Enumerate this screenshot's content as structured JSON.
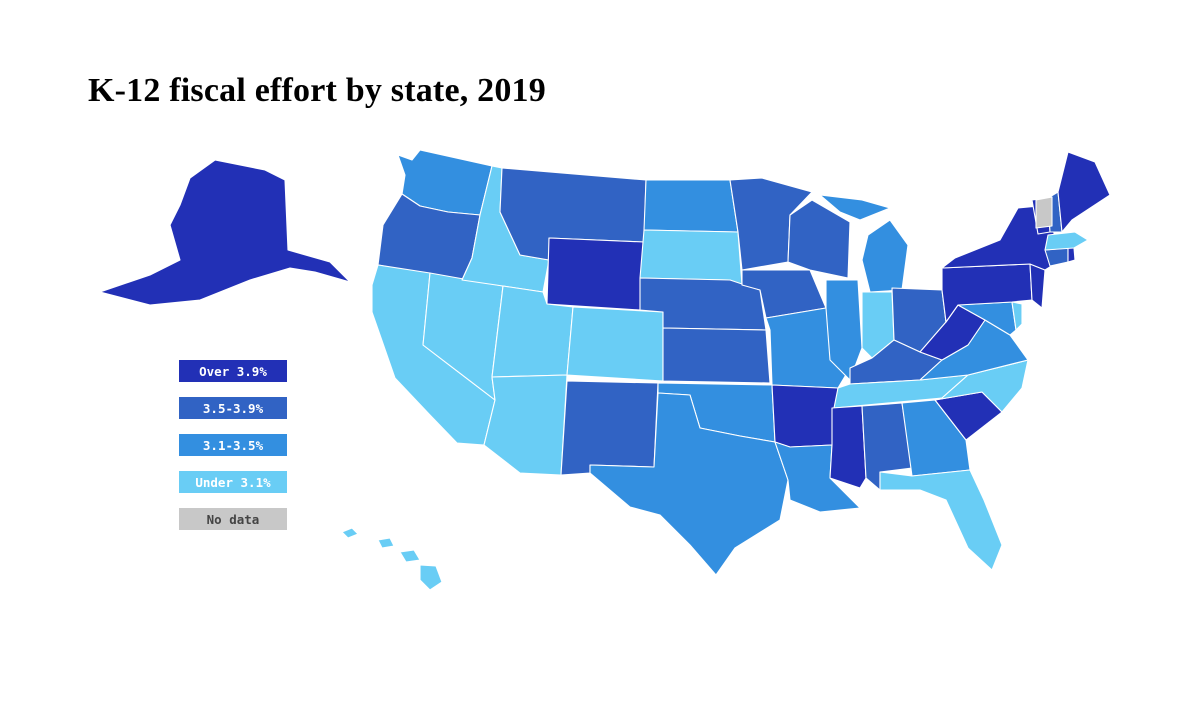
{
  "title": "K-12 fiscal effort by state, 2019",
  "colors": {
    "over_3_9": "#2230b6",
    "r35_39": "#3163c4",
    "r31_35": "#338fe0",
    "under_3_1": "#69cdf5",
    "no_data": "#c8c8c8"
  },
  "legend": [
    {
      "label": "Over 3.9%",
      "color": "#2230b6",
      "text_color": "#ffffff"
    },
    {
      "label": "3.5-3.9%",
      "color": "#3163c4",
      "text_color": "#ffffff"
    },
    {
      "label": "3.1-3.5%",
      "color": "#338fe0",
      "text_color": "#ffffff"
    },
    {
      "label": "Under 3.1%",
      "color": "#69cdf5",
      "text_color": "#ffffff"
    },
    {
      "label": "No data",
      "color": "#c8c8c8",
      "text_color": "#444444"
    }
  ],
  "states": [
    {
      "name": "WA",
      "category": "3.1-3.5%"
    },
    {
      "name": "OR",
      "category": "3.5-3.9%"
    },
    {
      "name": "CA",
      "category": "Under 3.1%"
    },
    {
      "name": "NV",
      "category": "Under 3.1%"
    },
    {
      "name": "ID",
      "category": "Under 3.1%"
    },
    {
      "name": "MT",
      "category": "3.5-3.9%"
    },
    {
      "name": "WY",
      "category": "Over 3.9%"
    },
    {
      "name": "UT",
      "category": "Under 3.1%"
    },
    {
      "name": "AZ",
      "category": "Under 3.1%"
    },
    {
      "name": "CO",
      "category": "Under 3.1%"
    },
    {
      "name": "NM",
      "category": "3.5-3.9%"
    },
    {
      "name": "ND",
      "category": "3.1-3.5%"
    },
    {
      "name": "SD",
      "category": "Under 3.1%"
    },
    {
      "name": "NE",
      "category": "3.5-3.9%"
    },
    {
      "name": "KS",
      "category": "3.5-3.9%"
    },
    {
      "name": "OK",
      "category": "3.1-3.5%"
    },
    {
      "name": "TX",
      "category": "3.1-3.5%"
    },
    {
      "name": "MN",
      "category": "3.5-3.9%"
    },
    {
      "name": "IA",
      "category": "3.5-3.9%"
    },
    {
      "name": "MO",
      "category": "3.1-3.5%"
    },
    {
      "name": "AR",
      "category": "Over 3.9%"
    },
    {
      "name": "LA",
      "category": "3.1-3.5%"
    },
    {
      "name": "WI",
      "category": "3.5-3.9%"
    },
    {
      "name": "IL",
      "category": "3.1-3.5%"
    },
    {
      "name": "MI",
      "category": "3.1-3.5%"
    },
    {
      "name": "IN",
      "category": "Under 3.1%"
    },
    {
      "name": "OH",
      "category": "3.5-3.9%"
    },
    {
      "name": "KY",
      "category": "3.5-3.9%"
    },
    {
      "name": "TN",
      "category": "Under 3.1%"
    },
    {
      "name": "MS",
      "category": "Over 3.9%"
    },
    {
      "name": "AL",
      "category": "3.5-3.9%"
    },
    {
      "name": "GA",
      "category": "3.1-3.5%"
    },
    {
      "name": "FL",
      "category": "Under 3.1%"
    },
    {
      "name": "SC",
      "category": "Over 3.9%"
    },
    {
      "name": "NC",
      "category": "Under 3.1%"
    },
    {
      "name": "VA",
      "category": "3.1-3.5%"
    },
    {
      "name": "WV",
      "category": "Over 3.9%"
    },
    {
      "name": "MD",
      "category": "3.1-3.5%"
    },
    {
      "name": "DE",
      "category": "Under 3.1%"
    },
    {
      "name": "NJ",
      "category": "Over 3.9%"
    },
    {
      "name": "PA",
      "category": "Over 3.9%"
    },
    {
      "name": "NY",
      "category": "Over 3.9%"
    },
    {
      "name": "CT",
      "category": "3.5-3.9%"
    },
    {
      "name": "RI",
      "category": "Over 3.9%"
    },
    {
      "name": "MA",
      "category": "Under 3.1%"
    },
    {
      "name": "VT",
      "category": "Over 3.9%"
    },
    {
      "name": "NH",
      "category": "3.5-3.9%"
    },
    {
      "name": "ME",
      "category": "Over 3.9%"
    },
    {
      "name": "VT-gray",
      "category": "No data"
    },
    {
      "name": "AK",
      "category": "Over 3.9%"
    },
    {
      "name": "HI",
      "category": "Under 3.1%"
    }
  ]
}
